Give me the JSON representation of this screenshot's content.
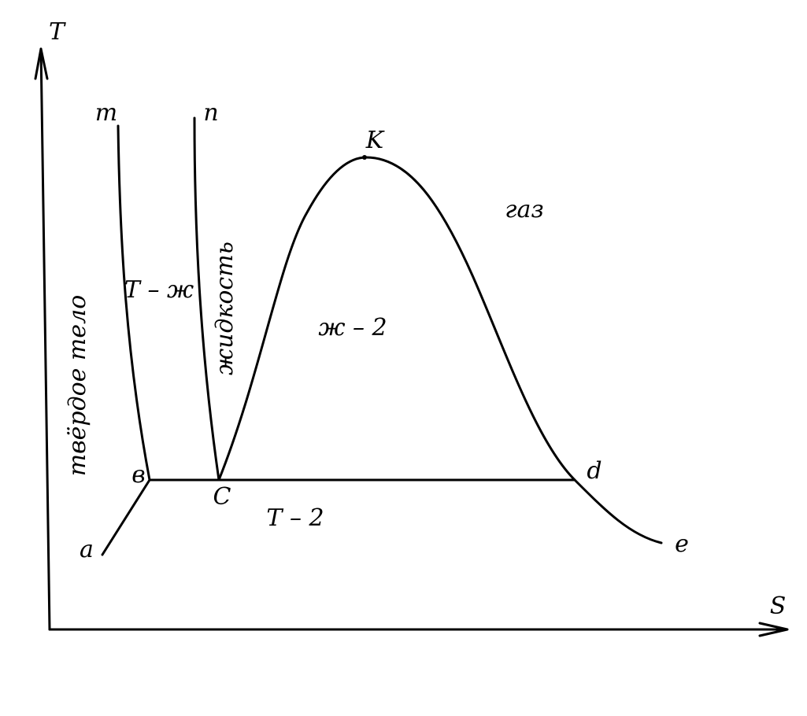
{
  "axes": {
    "y": "T",
    "x": "S"
  },
  "points": {
    "m": "m",
    "n": "n",
    "k": "K",
    "a": "a",
    "b": "в",
    "c": "C",
    "d": "d",
    "e": "e"
  },
  "regions": {
    "gas": "газ",
    "liquid_gas": "ж – 2",
    "solid_liquid": "Т – ж",
    "liquid": "жидкость",
    "solid": "твёрдое тело",
    "solid_gas": "Т – 2"
  }
}
